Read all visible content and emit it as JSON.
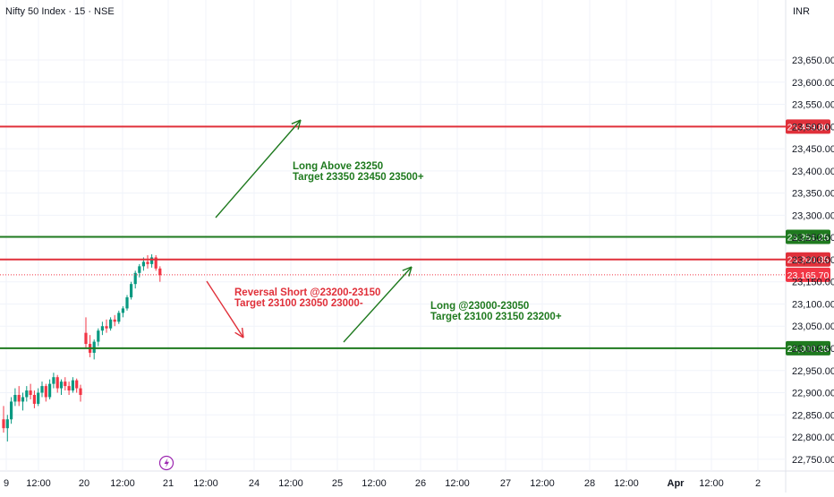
{
  "header": {
    "symbol_title": "Nifty 50 Index · 15 · NSE",
    "currency": "INR"
  },
  "colors": {
    "resistance": "#e0303a",
    "support": "#1f7a1f",
    "candle_up": "#089981",
    "candle_down": "#f23645",
    "last_price": "#f23645",
    "grid": "#f0f3fa"
  },
  "chart_data": {
    "type": "candlestick",
    "y_axis": {
      "range": [
        22730,
        23700
      ],
      "ticks": [
        "22,750.00",
        "22,800.00",
        "22,850.00",
        "22,900.00",
        "22,950.00",
        "23,000.00",
        "23,050.00",
        "23,100.00",
        "23,150.00",
        "23,200.00",
        "23,250.00",
        "23,300.00",
        "23,350.00",
        "23,400.00",
        "23,450.00",
        "23,500.00",
        "23,550.00",
        "23,600.00",
        "23,650.00"
      ],
      "tick_values": [
        22750,
        22800,
        22850,
        22900,
        22950,
        23000,
        23050,
        23100,
        23150,
        23200,
        23250,
        23300,
        23350,
        23400,
        23450,
        23500,
        23550,
        23600,
        23650
      ]
    },
    "x_axis": {
      "labels": [
        "9",
        "12:00",
        "20",
        "12:00",
        "21",
        "12:00",
        "24",
        "12:00",
        "25",
        "12:00",
        "26",
        "12:00",
        "27",
        "12:00",
        "28",
        "12:00",
        "Apr",
        "12:00",
        "2"
      ],
      "bold": [
        false,
        false,
        false,
        false,
        false,
        false,
        false,
        false,
        false,
        false,
        false,
        false,
        false,
        false,
        false,
        false,
        true,
        false,
        false
      ]
    },
    "levels": [
      {
        "value": 23499.8,
        "label": "23,499.80",
        "kind": "resistance"
      },
      {
        "value": 23251.25,
        "label": "23,251.25",
        "kind": "support"
      },
      {
        "value": 23200.35,
        "label": "23,200.35",
        "kind": "resistance"
      },
      {
        "value": 23000.25,
        "label": "23,000.25",
        "kind": "support"
      }
    ],
    "last_price": {
      "value": 23165.7,
      "label": "23,165.70"
    },
    "candles": [
      [
        22840,
        22870,
        22810,
        22820
      ],
      [
        22820,
        22850,
        22790,
        22840
      ],
      [
        22840,
        22890,
        22830,
        22880
      ],
      [
        22880,
        22910,
        22870,
        22895
      ],
      [
        22895,
        22915,
        22870,
        22880
      ],
      [
        22880,
        22900,
        22860,
        22890
      ],
      [
        22890,
        22915,
        22880,
        22905
      ],
      [
        22905,
        22920,
        22885,
        22895
      ],
      [
        22895,
        22905,
        22865,
        22875
      ],
      [
        22875,
        22910,
        22870,
        22900
      ],
      [
        22900,
        22925,
        22890,
        22915
      ],
      [
        22915,
        22920,
        22880,
        22890
      ],
      [
        22890,
        22930,
        22885,
        22920
      ],
      [
        22920,
        22945,
        22910,
        22935
      ],
      [
        22935,
        22940,
        22900,
        22910
      ],
      [
        22910,
        22930,
        22895,
        22925
      ],
      [
        22925,
        22935,
        22905,
        22915
      ],
      [
        22915,
        22925,
        22895,
        22905
      ],
      [
        22905,
        22935,
        22900,
        22928
      ],
      [
        22928,
        22932,
        22900,
        22910
      ],
      [
        22910,
        22918,
        22880,
        22895
      ],
      [
        23035,
        23070,
        23000,
        23010
      ],
      [
        23010,
        23030,
        22980,
        22990
      ],
      [
        22990,
        23020,
        22975,
        23015
      ],
      [
        23015,
        23045,
        23005,
        23040
      ],
      [
        23040,
        23060,
        23030,
        23050
      ],
      [
        23050,
        23065,
        23035,
        23045
      ],
      [
        23045,
        23070,
        23040,
        23065
      ],
      [
        23065,
        23075,
        23050,
        23060
      ],
      [
        23060,
        23085,
        23055,
        23080
      ],
      [
        23080,
        23095,
        23070,
        23090
      ],
      [
        23090,
        23120,
        23085,
        23115
      ],
      [
        23115,
        23150,
        23110,
        23145
      ],
      [
        23145,
        23175,
        23135,
        23170
      ],
      [
        23170,
        23190,
        23160,
        23185
      ],
      [
        23185,
        23205,
        23175,
        23195
      ],
      [
        23195,
        23210,
        23180,
        23190
      ],
      [
        23190,
        23212,
        23182,
        23205
      ],
      [
        23205,
        23210,
        23175,
        23180
      ],
      [
        23180,
        23185,
        23150,
        23165
      ]
    ],
    "annotations": [
      {
        "id": "long-above",
        "lines": [
          "Long Above 23250",
          "Target 23350 23450 23500+"
        ],
        "color": "support"
      },
      {
        "id": "reversal-short",
        "lines": [
          "Reversal Short @23200-23150",
          "Target 23100 23050 23000-"
        ],
        "color": "resistance"
      },
      {
        "id": "long-range",
        "lines": [
          "Long @23000-23050",
          "Target 23100 23150 23200+"
        ],
        "color": "support"
      }
    ]
  }
}
